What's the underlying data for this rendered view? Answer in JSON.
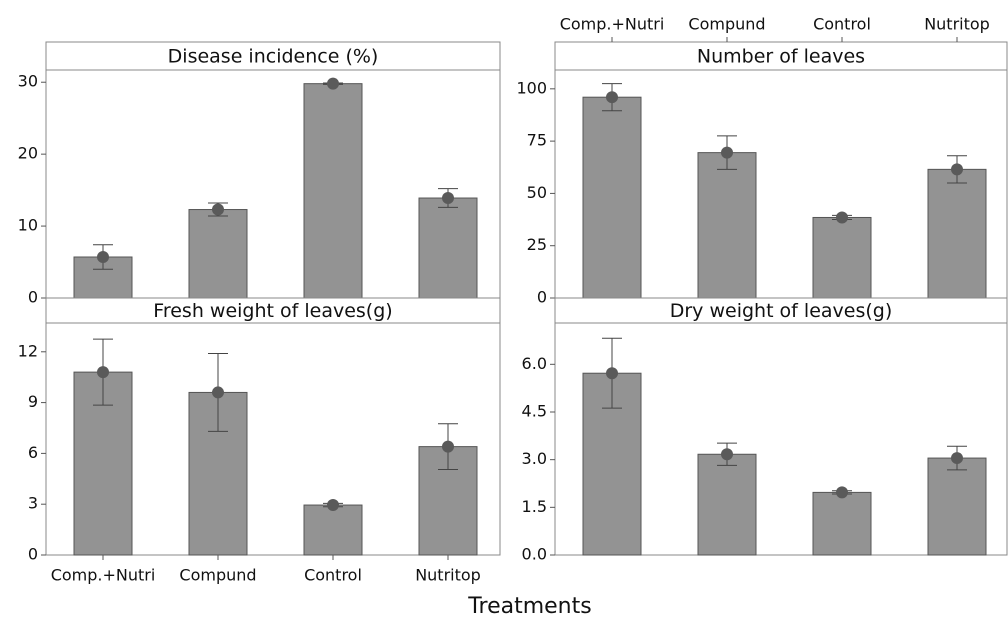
{
  "x_label": "Treatments",
  "chart_data": [
    {
      "type": "bar",
      "title": "Disease incidence (%)",
      "categories": [
        "Comp.+Nutri",
        "Compund",
        "Control",
        "Nutritop"
      ],
      "values": [
        5.7,
        12.3,
        29.8,
        13.9
      ],
      "errors": [
        1.7,
        0.9,
        0.1,
        1.3
      ],
      "color": "#939393",
      "ylim": [
        0,
        31.7
      ],
      "yticks": [
        0,
        10,
        20,
        30
      ]
    },
    {
      "type": "bar",
      "title": "Number of leaves",
      "categories": [
        "Comp.+Nutri",
        "Compund",
        "Control",
        "Nutritop"
      ],
      "values": [
        96,
        69.5,
        38.5,
        61.5
      ],
      "errors": [
        6.5,
        8,
        1,
        6.5
      ],
      "color": "#939393",
      "ylim": [
        0,
        109
      ],
      "yticks": [
        0,
        25,
        50,
        75,
        100
      ]
    },
    {
      "type": "bar",
      "title": "Fresh weight of leaves(g)",
      "categories": [
        "Comp.+Nutri",
        "Compund",
        "Control",
        "Nutritop"
      ],
      "values": [
        10.8,
        9.6,
        2.95,
        6.4
      ],
      "errors": [
        1.95,
        2.3,
        0.1,
        1.35
      ],
      "color": "#939393",
      "ylim": [
        0,
        13.7
      ],
      "yticks": [
        0,
        3,
        6,
        9,
        12
      ]
    },
    {
      "type": "bar",
      "title": "Dry weight of leaves(g)",
      "categories": [
        "Comp.+Nutri",
        "Compund",
        "Control",
        "Nutritop"
      ],
      "values": [
        5.72,
        3.17,
        1.97,
        3.05
      ],
      "errors": [
        1.1,
        0.35,
        0.05,
        0.37
      ],
      "color": "#939393",
      "ylim": [
        0,
        7.3
      ],
      "yticks": [
        {
          "value": 0,
          "label": "0.0"
        },
        1.5,
        {
          "value": 3,
          "label": "3.0"
        },
        4.5,
        {
          "value": 6,
          "label": "6.0"
        }
      ]
    }
  ]
}
